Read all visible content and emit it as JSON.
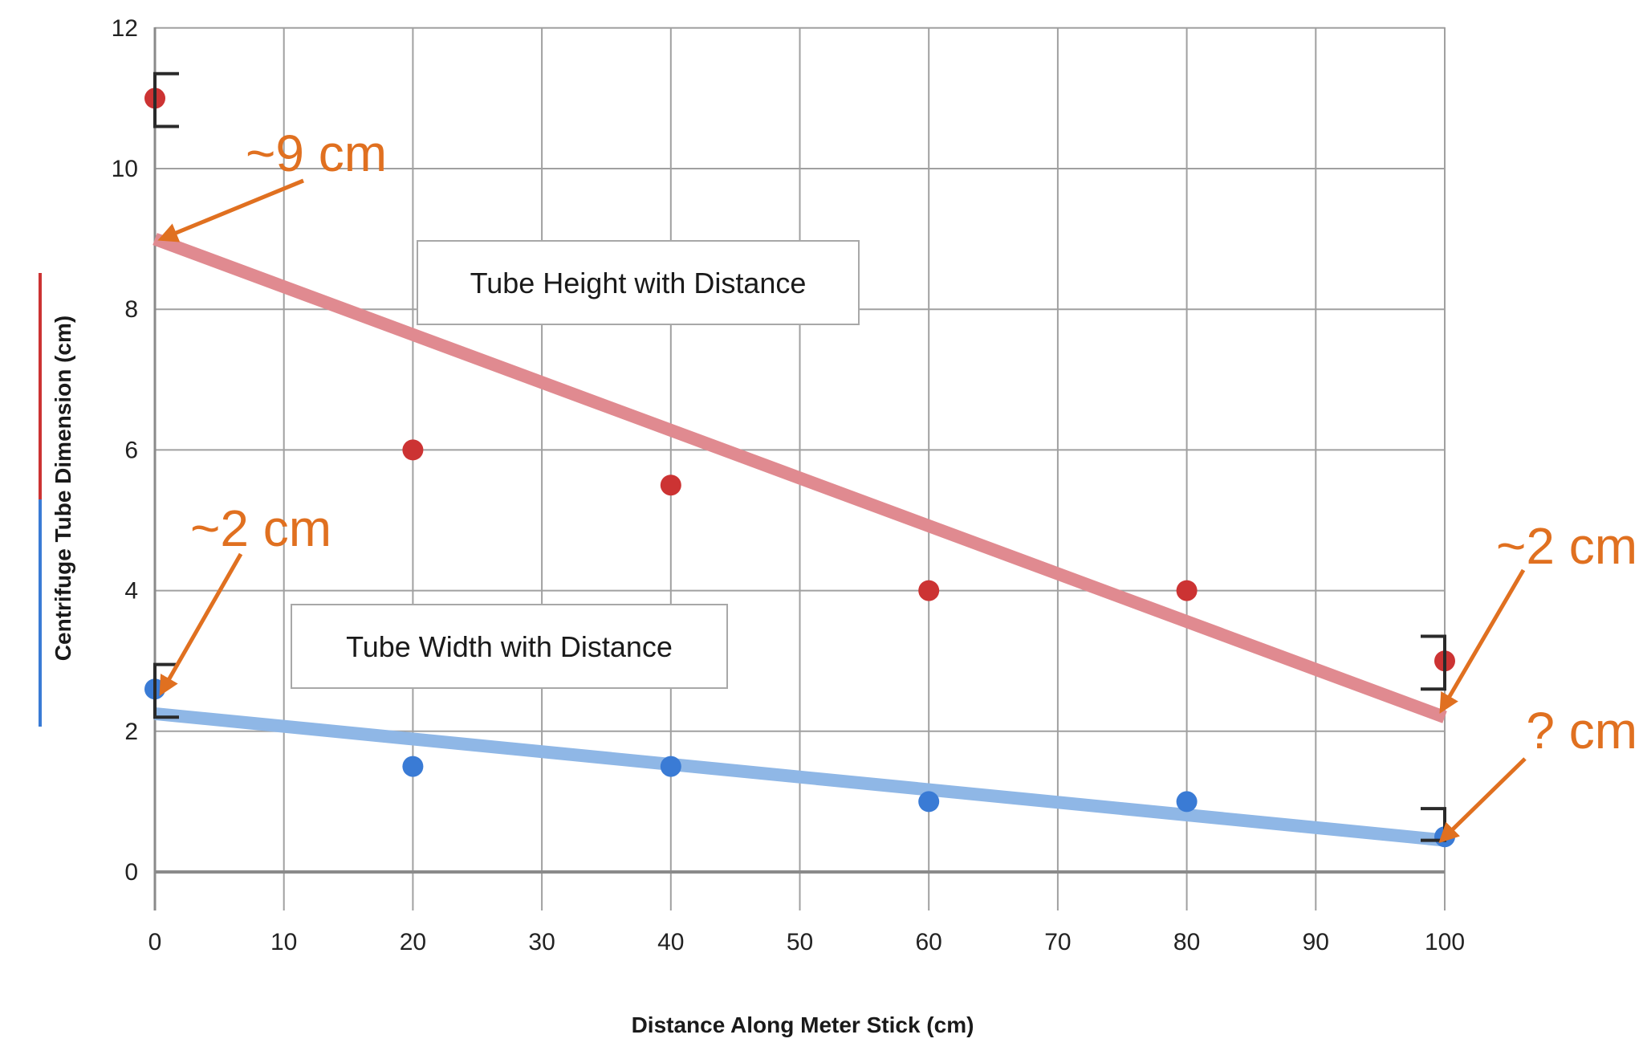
{
  "chart_data": {
    "type": "scatter",
    "xlabel": "Distance Along Meter Stick (cm)",
    "ylabel": "Centrifuge Tube Dimension   (cm)",
    "xlim": [
      0,
      100
    ],
    "ylim": [
      -0.5,
      12
    ],
    "x_ticks": [
      0,
      10,
      20,
      30,
      40,
      50,
      60,
      70,
      80,
      90,
      100
    ],
    "y_ticks": [
      0,
      2,
      4,
      6,
      8,
      10,
      12
    ],
    "grid": true,
    "series": [
      {
        "name": "Tube Height with Distance",
        "color": "#cc3333",
        "trend_color": "#e08a90",
        "points": [
          {
            "x": 0,
            "y": 11
          },
          {
            "x": 20,
            "y": 6
          },
          {
            "x": 40,
            "y": 5.5
          },
          {
            "x": 60,
            "y": 4
          },
          {
            "x": 80,
            "y": 4
          },
          {
            "x": 100,
            "y": 3
          }
        ],
        "trendline": [
          {
            "x": 0,
            "y": 9
          },
          {
            "x": 100,
            "y": 2.2
          }
        ]
      },
      {
        "name": "Tube Width with Distance",
        "color": "#3a7bd5",
        "trend_color": "#8fb7e6",
        "points": [
          {
            "x": 0,
            "y": 2.6
          },
          {
            "x": 20,
            "y": 1.5
          },
          {
            "x": 40,
            "y": 1.5
          },
          {
            "x": 60,
            "y": 1
          },
          {
            "x": 80,
            "y": 1
          },
          {
            "x": 100,
            "y": 0.5
          }
        ],
        "trendline": [
          {
            "x": 0,
            "y": 2.25
          },
          {
            "x": 100,
            "y": 0.45
          }
        ]
      }
    ],
    "brackets": [
      {
        "x": 0,
        "y_low": 10.6,
        "y_high": 11.35
      },
      {
        "x": 0,
        "y_low": 2.2,
        "y_high": 2.95
      },
      {
        "x": 100,
        "y_low": 2.6,
        "y_high": 3.35
      },
      {
        "x": 100,
        "y_low": 0.45,
        "y_high": 0.9
      }
    ],
    "annotations": [
      {
        "text": "~9 cm",
        "target": {
          "x": 0,
          "y": 9
        }
      },
      {
        "text": "~2 cm",
        "target": {
          "x": 0,
          "y": 2.55
        }
      },
      {
        "text": "~2 cm",
        "target": {
          "x": 100,
          "y": 2.3
        }
      },
      {
        "text": "? cm",
        "target": {
          "x": 100,
          "y": 0.45
        }
      }
    ],
    "annotation_color": "#e07020"
  }
}
